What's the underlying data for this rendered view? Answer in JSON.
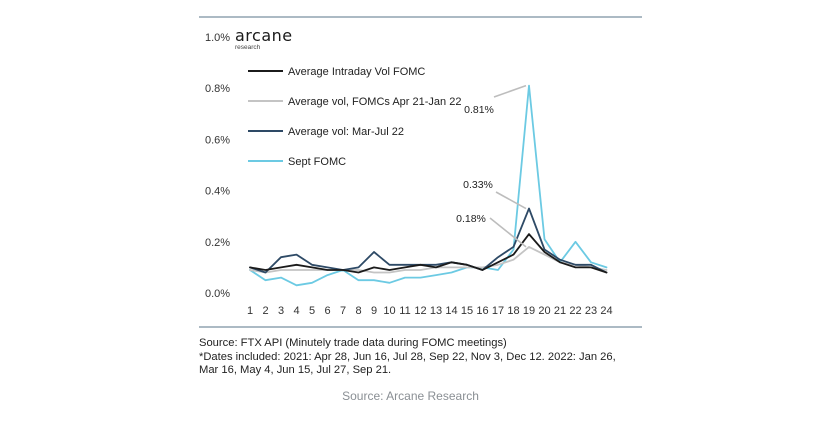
{
  "chart_data": {
    "type": "line",
    "brand": {
      "name": "arcane",
      "subtitle": "research"
    },
    "categories": [
      "1",
      "2",
      "3",
      "4",
      "5",
      "6",
      "7",
      "8",
      "9",
      "10",
      "11",
      "12",
      "13",
      "14",
      "15",
      "16",
      "17",
      "18",
      "19",
      "20",
      "21",
      "22",
      "23",
      "24"
    ],
    "ylim": [
      0,
      1.0
    ],
    "ytick_values": [
      0,
      0.2,
      0.4,
      0.6,
      0.8,
      1.0
    ],
    "ytick_labels": [
      "0.0%",
      "0.2%",
      "0.4%",
      "0.6%",
      "0.8%",
      "1.0%"
    ],
    "xlabel": "",
    "ylabel": "",
    "grid": false,
    "legend_position": "top-left",
    "series": [
      {
        "name": "Average Intraday Vol FOMC",
        "color": "#1b1b1b",
        "values": [
          0.1,
          0.09,
          0.1,
          0.11,
          0.1,
          0.09,
          0.09,
          0.08,
          0.1,
          0.09,
          0.1,
          0.11,
          0.1,
          0.12,
          0.11,
          0.09,
          0.12,
          0.15,
          0.23,
          0.16,
          0.12,
          0.1,
          0.1,
          0.08
        ]
      },
      {
        "name": "Average vol, FOMCs Apr 21-Jan 22",
        "color": "#c4c4c4",
        "values": [
          0.09,
          0.08,
          0.09,
          0.09,
          0.09,
          0.09,
          0.09,
          0.09,
          0.08,
          0.08,
          0.09,
          0.09,
          0.1,
          0.1,
          0.1,
          0.1,
          0.11,
          0.13,
          0.18,
          0.15,
          0.12,
          0.11,
          0.1,
          0.09
        ]
      },
      {
        "name": "Average vol: Mar-Jul 22",
        "color": "#2e4a66",
        "values": [
          0.1,
          0.08,
          0.14,
          0.15,
          0.11,
          0.1,
          0.09,
          0.1,
          0.16,
          0.11,
          0.11,
          0.11,
          0.11,
          0.12,
          0.11,
          0.09,
          0.14,
          0.18,
          0.33,
          0.17,
          0.13,
          0.11,
          0.11,
          0.08
        ]
      },
      {
        "name": "Sept FOMC",
        "color": "#6ccae3",
        "values": [
          0.09,
          0.05,
          0.06,
          0.03,
          0.04,
          0.07,
          0.09,
          0.05,
          0.05,
          0.04,
          0.06,
          0.06,
          0.07,
          0.08,
          0.1,
          0.1,
          0.09,
          0.17,
          0.81,
          0.21,
          0.12,
          0.2,
          0.12,
          0.1
        ]
      }
    ],
    "annotations": [
      {
        "text": "0.81%",
        "x": "19",
        "y": 0.81
      },
      {
        "text": "0.33%",
        "x": "19",
        "y": 0.33
      },
      {
        "text": "0.18%",
        "x": "19",
        "y": 0.18
      }
    ]
  },
  "notes": {
    "line1": "Source: FTX API (Minutely trade data during FOMC meetings)",
    "line2": "*Dates included: 2021: Apr 28, Jun 16, Jul 28, Sep 22, Nov 3, Dec 12.  2022: Jan 26,",
    "line3": "Mar 16, May 4, Jun 15, Jul 27, Sep 21."
  },
  "caption": "Source: Arcane Research"
}
